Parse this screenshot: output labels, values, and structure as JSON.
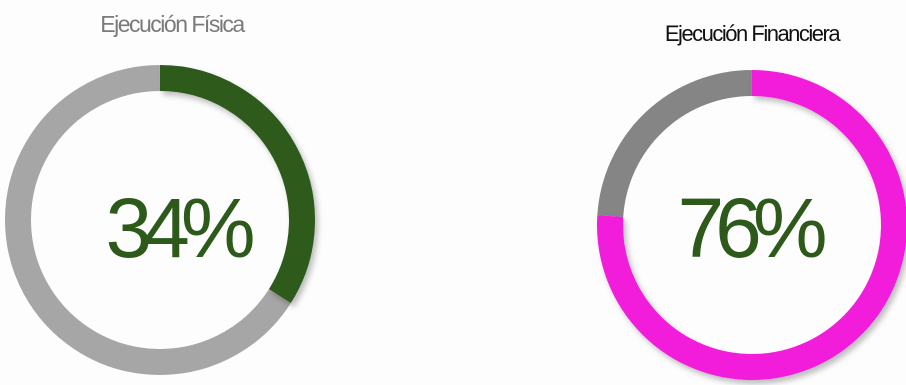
{
  "chart_data": [
    {
      "type": "donut",
      "title": "Ejecución Física",
      "value_label": "34%",
      "value": 34,
      "max": 100,
      "colors": {
        "value": "#2d5a1b",
        "track": "#a6a6a6",
        "title": "#7a7a7a",
        "label": "#2d5a1b"
      }
    },
    {
      "type": "donut",
      "title": "Ejecución Financiera",
      "value_label": "76%",
      "value": 76,
      "max": 100,
      "colors": {
        "value": "#f21bdb",
        "track": "#858585",
        "title": "#111111",
        "label": "#2d5a1b"
      }
    }
  ]
}
